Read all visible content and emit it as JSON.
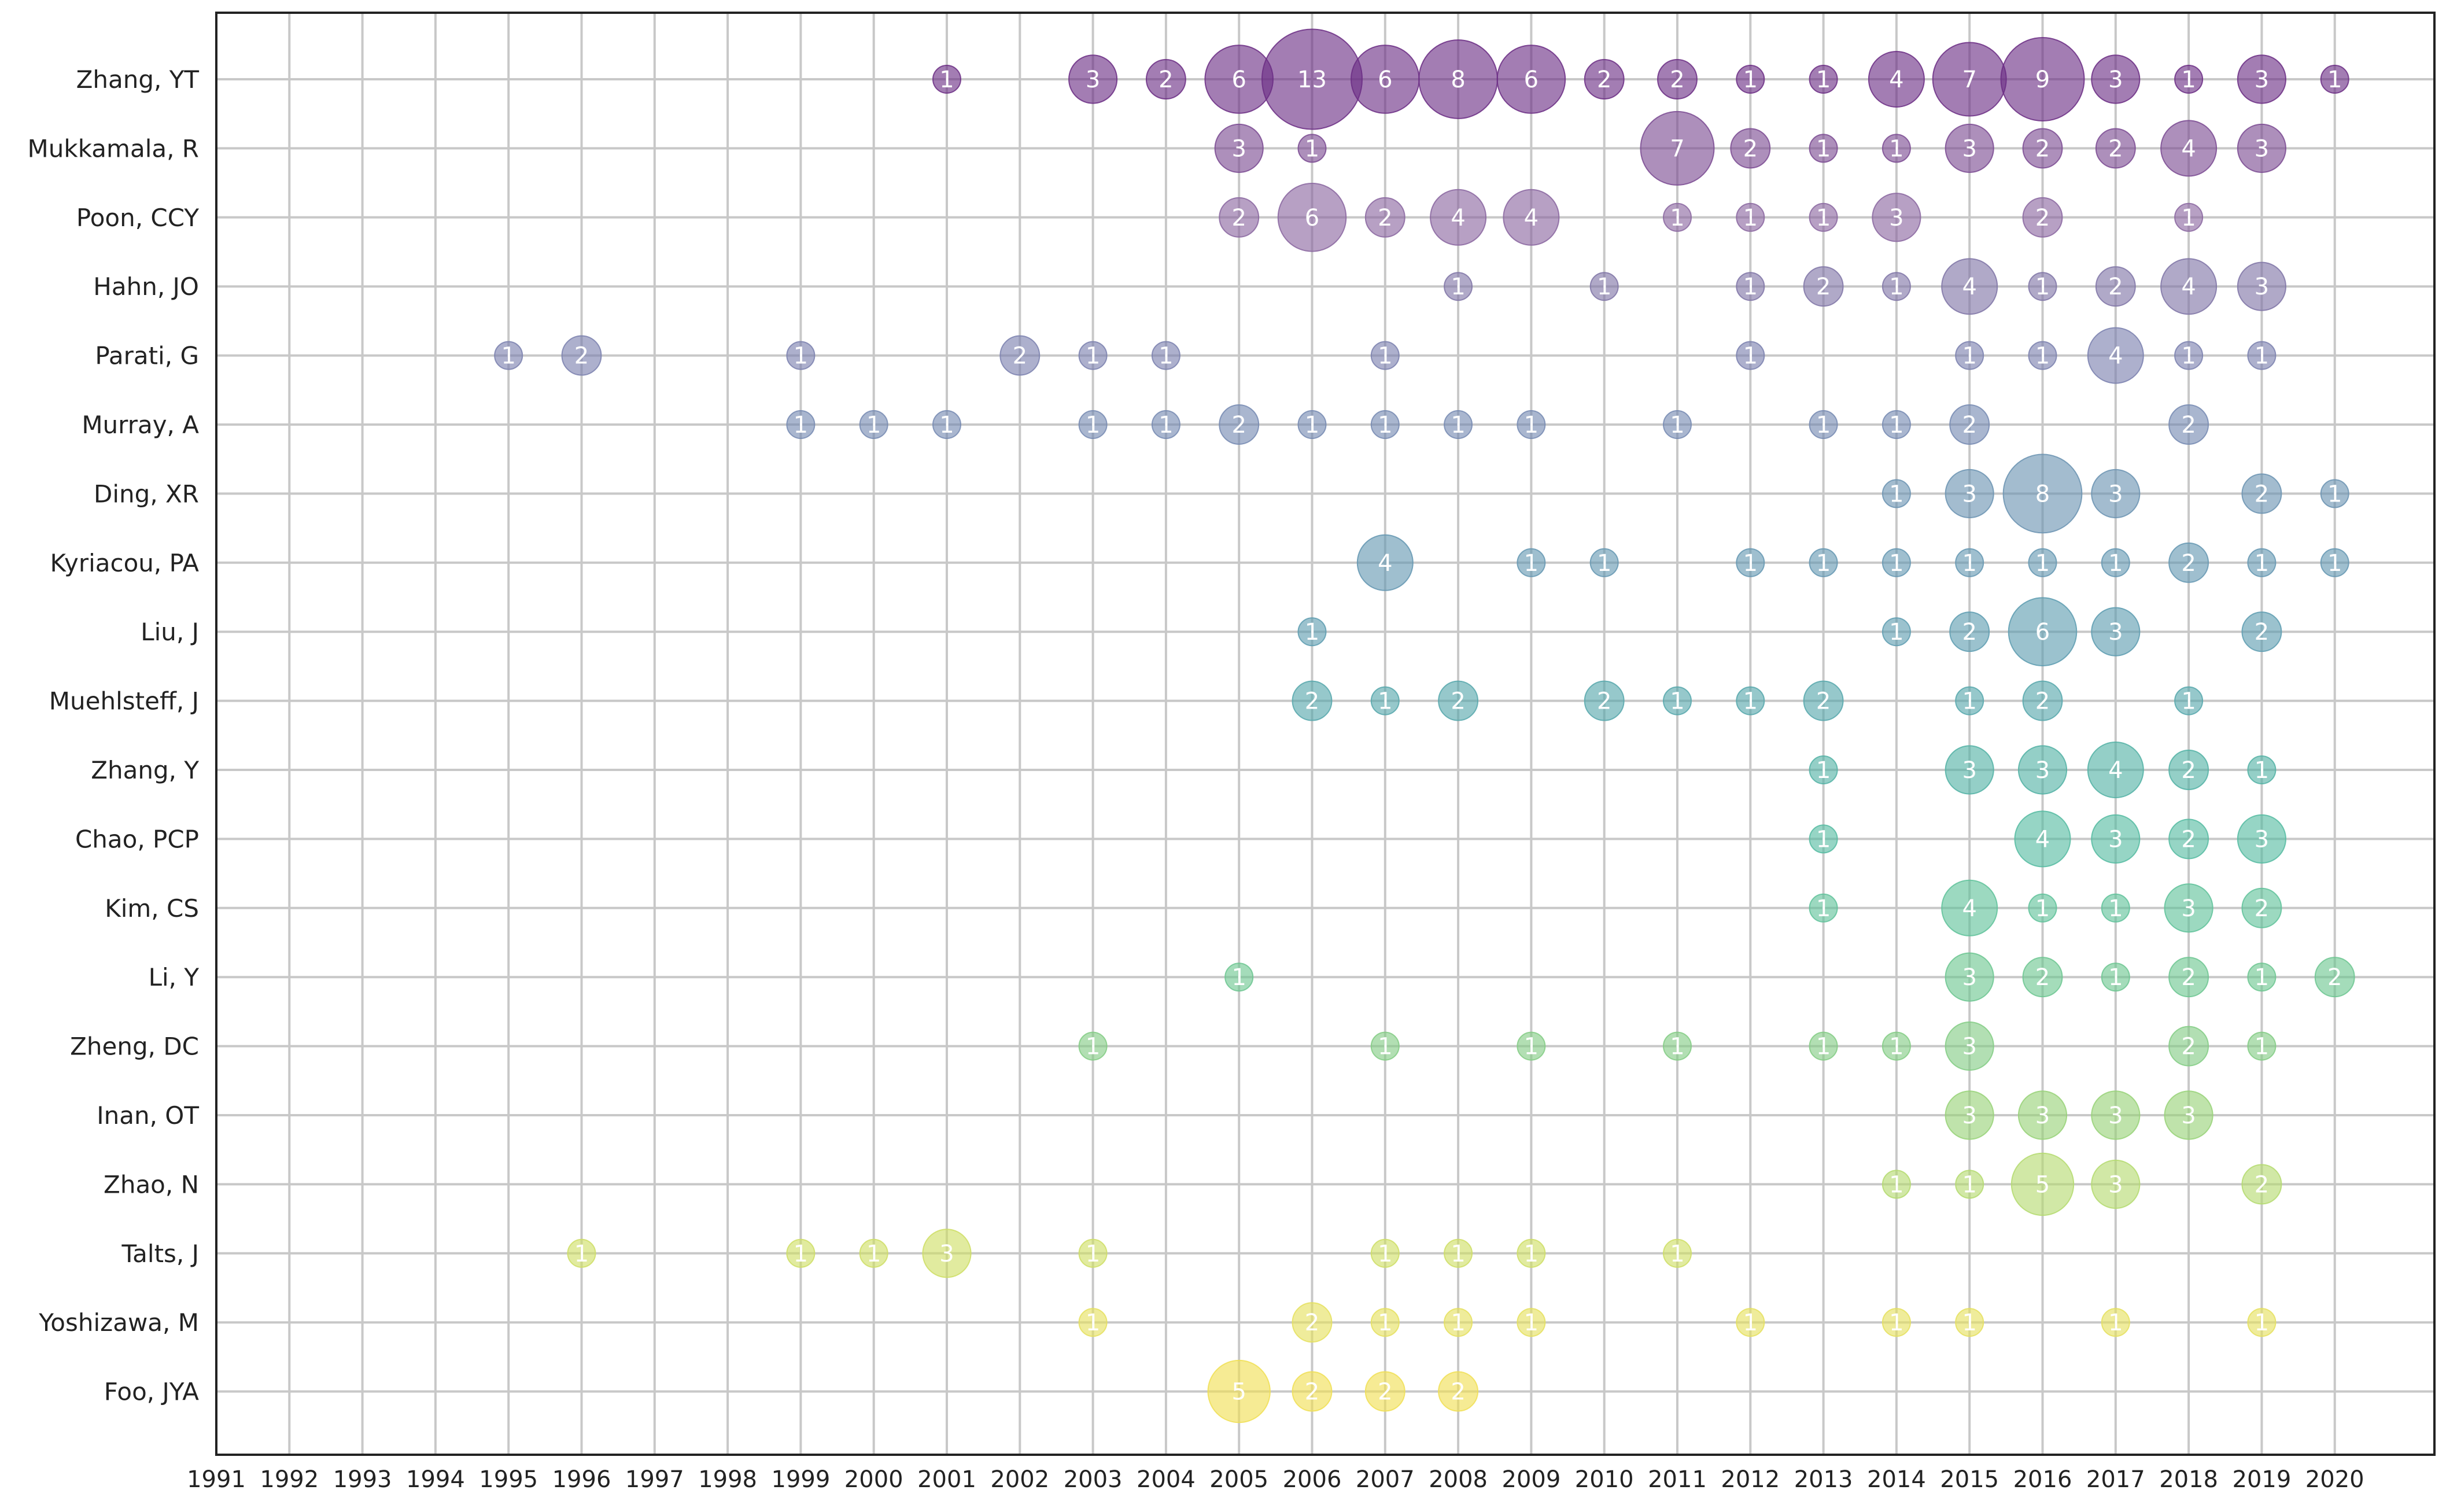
{
  "chart_data": {
    "type": "scatter",
    "title": "",
    "xlabel": "",
    "ylabel": "",
    "grid": true,
    "x_ticks": [
      "1991",
      "1992",
      "1993",
      "1994",
      "1995",
      "1996",
      "1997",
      "1998",
      "1999",
      "2000",
      "2001",
      "2002",
      "2003",
      "2004",
      "2005",
      "2006",
      "2007",
      "2008",
      "2009",
      "2010",
      "2011",
      "2012",
      "2013",
      "2014",
      "2015",
      "2016",
      "2017",
      "2018",
      "2019",
      "2020"
    ],
    "xlim": [
      1991,
      2020
    ],
    "colors": [
      "#6b2d84",
      "#7a4a92",
      "#8a66a0",
      "#7f74a6",
      "#7a80ae",
      "#7589b2",
      "#6b93b2",
      "#6497b1",
      "#5d9cb0",
      "#56a7ab",
      "#52b1a5",
      "#55bba1",
      "#5fc29a",
      "#6cc690",
      "#83cc84",
      "#98d278",
      "#b4da6f",
      "#cede64",
      "#e5e05d",
      "#f0df53"
    ],
    "series": [
      {
        "name": "Zhang, YT",
        "points": [
          [
            2001,
            1
          ],
          [
            2003,
            3
          ],
          [
            2004,
            2
          ],
          [
            2005,
            6
          ],
          [
            2006,
            13
          ],
          [
            2007,
            6
          ],
          [
            2008,
            8
          ],
          [
            2009,
            6
          ],
          [
            2010,
            2
          ],
          [
            2011,
            2
          ],
          [
            2012,
            1
          ],
          [
            2013,
            1
          ],
          [
            2014,
            4
          ],
          [
            2015,
            7
          ],
          [
            2016,
            9
          ],
          [
            2017,
            3
          ],
          [
            2018,
            1
          ],
          [
            2019,
            3
          ],
          [
            2020,
            1
          ]
        ]
      },
      {
        "name": "Mukkamala, R",
        "points": [
          [
            2005,
            3
          ],
          [
            2006,
            1
          ],
          [
            2011,
            7
          ],
          [
            2012,
            2
          ],
          [
            2013,
            1
          ],
          [
            2014,
            1
          ],
          [
            2015,
            3
          ],
          [
            2016,
            2
          ],
          [
            2017,
            2
          ],
          [
            2018,
            4
          ],
          [
            2019,
            3
          ]
        ]
      },
      {
        "name": "Poon, CCY",
        "points": [
          [
            2005,
            2
          ],
          [
            2006,
            6
          ],
          [
            2007,
            2
          ],
          [
            2008,
            4
          ],
          [
            2009,
            4
          ],
          [
            2011,
            1
          ],
          [
            2012,
            1
          ],
          [
            2013,
            1
          ],
          [
            2014,
            3
          ],
          [
            2016,
            2
          ],
          [
            2018,
            1
          ]
        ]
      },
      {
        "name": "Hahn, JO",
        "points": [
          [
            2008,
            1
          ],
          [
            2010,
            1
          ],
          [
            2012,
            1
          ],
          [
            2013,
            2
          ],
          [
            2014,
            1
          ],
          [
            2015,
            4
          ],
          [
            2016,
            1
          ],
          [
            2017,
            2
          ],
          [
            2018,
            4
          ],
          [
            2019,
            3
          ]
        ]
      },
      {
        "name": "Parati, G",
        "points": [
          [
            1995,
            1
          ],
          [
            1996,
            2
          ],
          [
            1999,
            1
          ],
          [
            2002,
            2
          ],
          [
            2003,
            1
          ],
          [
            2004,
            1
          ],
          [
            2007,
            1
          ],
          [
            2012,
            1
          ],
          [
            2015,
            1
          ],
          [
            2016,
            1
          ],
          [
            2017,
            4
          ],
          [
            2018,
            1
          ],
          [
            2019,
            1
          ]
        ]
      },
      {
        "name": "Murray, A",
        "points": [
          [
            1999,
            1
          ],
          [
            2000,
            1
          ],
          [
            2001,
            1
          ],
          [
            2003,
            1
          ],
          [
            2004,
            1
          ],
          [
            2005,
            2
          ],
          [
            2006,
            1
          ],
          [
            2007,
            1
          ],
          [
            2008,
            1
          ],
          [
            2009,
            1
          ],
          [
            2011,
            1
          ],
          [
            2013,
            1
          ],
          [
            2014,
            1
          ],
          [
            2015,
            2
          ],
          [
            2018,
            2
          ]
        ]
      },
      {
        "name": "Ding, XR",
        "points": [
          [
            2014,
            1
          ],
          [
            2015,
            3
          ],
          [
            2016,
            8
          ],
          [
            2017,
            3
          ],
          [
            2019,
            2
          ],
          [
            2020,
            1
          ]
        ]
      },
      {
        "name": "Kyriacou, PA",
        "points": [
          [
            2007,
            4
          ],
          [
            2009,
            1
          ],
          [
            2010,
            1
          ],
          [
            2012,
            1
          ],
          [
            2013,
            1
          ],
          [
            2014,
            1
          ],
          [
            2015,
            1
          ],
          [
            2016,
            1
          ],
          [
            2017,
            1
          ],
          [
            2018,
            2
          ],
          [
            2019,
            1
          ],
          [
            2020,
            1
          ]
        ]
      },
      {
        "name": "Liu, J",
        "points": [
          [
            2006,
            1
          ],
          [
            2014,
            1
          ],
          [
            2015,
            2
          ],
          [
            2016,
            6
          ],
          [
            2017,
            3
          ],
          [
            2019,
            2
          ]
        ]
      },
      {
        "name": "Muehlsteff, J",
        "points": [
          [
            2006,
            2
          ],
          [
            2007,
            1
          ],
          [
            2008,
            2
          ],
          [
            2010,
            2
          ],
          [
            2011,
            1
          ],
          [
            2012,
            1
          ],
          [
            2013,
            2
          ],
          [
            2015,
            1
          ],
          [
            2016,
            2
          ],
          [
            2018,
            1
          ]
        ]
      },
      {
        "name": "Zhang, Y",
        "points": [
          [
            2013,
            1
          ],
          [
            2015,
            3
          ],
          [
            2016,
            3
          ],
          [
            2017,
            4
          ],
          [
            2018,
            2
          ],
          [
            2019,
            1
          ]
        ]
      },
      {
        "name": "Chao, PCP",
        "points": [
          [
            2013,
            1
          ],
          [
            2016,
            4
          ],
          [
            2017,
            3
          ],
          [
            2018,
            2
          ],
          [
            2019,
            3
          ]
        ]
      },
      {
        "name": "Kim, CS",
        "points": [
          [
            2013,
            1
          ],
          [
            2015,
            4
          ],
          [
            2016,
            1
          ],
          [
            2017,
            1
          ],
          [
            2018,
            3
          ],
          [
            2019,
            2
          ]
        ]
      },
      {
        "name": "Li, Y",
        "points": [
          [
            2005,
            1
          ],
          [
            2015,
            3
          ],
          [
            2016,
            2
          ],
          [
            2017,
            1
          ],
          [
            2018,
            2
          ],
          [
            2019,
            1
          ],
          [
            2020,
            2
          ]
        ]
      },
      {
        "name": "Zheng, DC",
        "points": [
          [
            2003,
            1
          ],
          [
            2007,
            1
          ],
          [
            2009,
            1
          ],
          [
            2011,
            1
          ],
          [
            2013,
            1
          ],
          [
            2014,
            1
          ],
          [
            2015,
            3
          ],
          [
            2018,
            2
          ],
          [
            2019,
            1
          ]
        ]
      },
      {
        "name": "Inan, OT",
        "points": [
          [
            2015,
            3
          ],
          [
            2016,
            3
          ],
          [
            2017,
            3
          ],
          [
            2018,
            3
          ]
        ]
      },
      {
        "name": "Zhao, N",
        "points": [
          [
            2014,
            1
          ],
          [
            2015,
            1
          ],
          [
            2016,
            5
          ],
          [
            2017,
            3
          ],
          [
            2019,
            2
          ]
        ]
      },
      {
        "name": "Talts, J",
        "points": [
          [
            1996,
            1
          ],
          [
            1999,
            1
          ],
          [
            2000,
            1
          ],
          [
            2001,
            3
          ],
          [
            2003,
            1
          ],
          [
            2007,
            1
          ],
          [
            2008,
            1
          ],
          [
            2009,
            1
          ],
          [
            2011,
            1
          ]
        ]
      },
      {
        "name": "Yoshizawa, M",
        "points": [
          [
            2003,
            1
          ],
          [
            2006,
            2
          ],
          [
            2007,
            1
          ],
          [
            2008,
            1
          ],
          [
            2009,
            1
          ],
          [
            2012,
            1
          ],
          [
            2014,
            1
          ],
          [
            2015,
            1
          ],
          [
            2017,
            1
          ],
          [
            2019,
            1
          ]
        ]
      },
      {
        "name": "Foo, JYA",
        "points": [
          [
            2005,
            5
          ],
          [
            2006,
            2
          ],
          [
            2007,
            2
          ],
          [
            2008,
            2
          ]
        ]
      }
    ]
  }
}
